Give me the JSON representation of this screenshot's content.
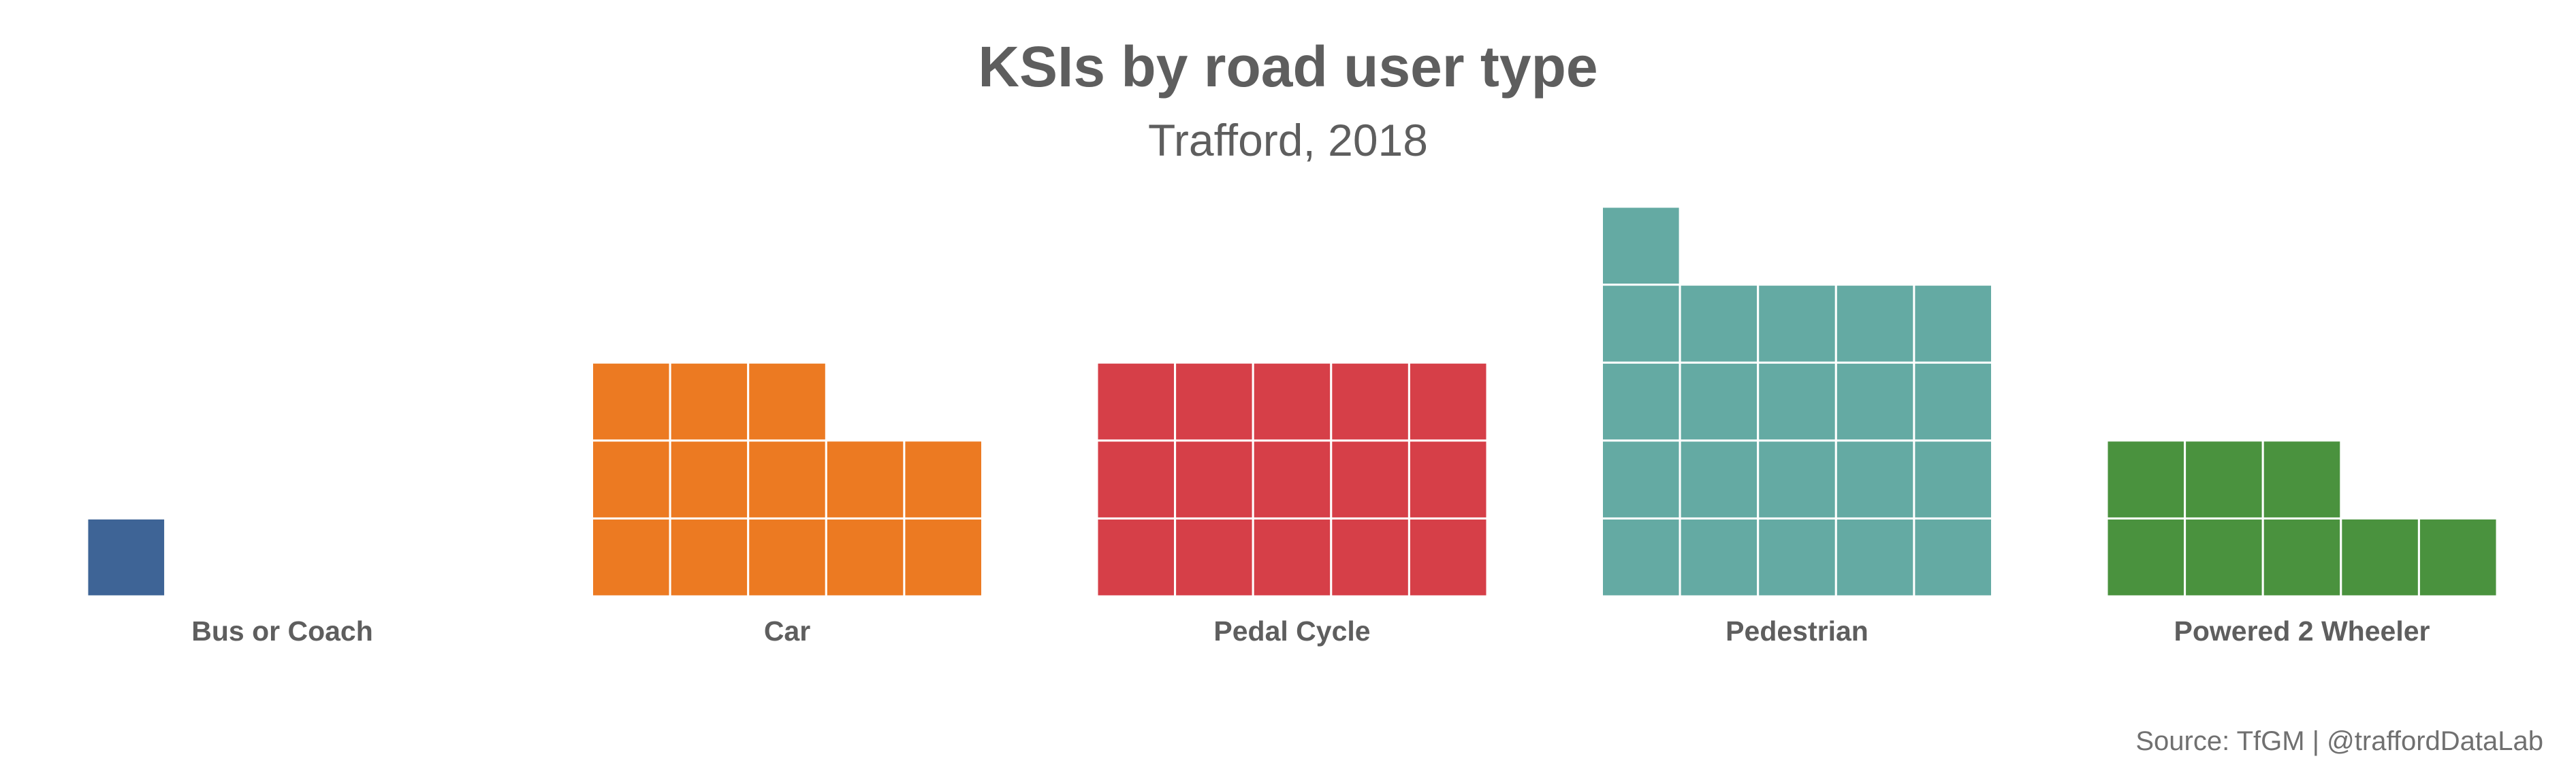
{
  "chart_data": {
    "type": "waffle",
    "title": "KSIs by road user type",
    "subtitle": "Trafford, 2018",
    "caption": "Source: TfGM | @traffordDataLab",
    "categories": [
      "Bus or Coach",
      "Car",
      "Pedal Cycle",
      "Pedestrian",
      "Powered 2 Wheeler"
    ],
    "values": [
      1,
      13,
      15,
      21,
      8
    ],
    "units_per_row": 5,
    "colors": [
      "#3e6496",
      "#ec7a22",
      "#d63f48",
      "#64aaa3",
      "#4a923e"
    ],
    "legend": "none",
    "grid": false
  }
}
